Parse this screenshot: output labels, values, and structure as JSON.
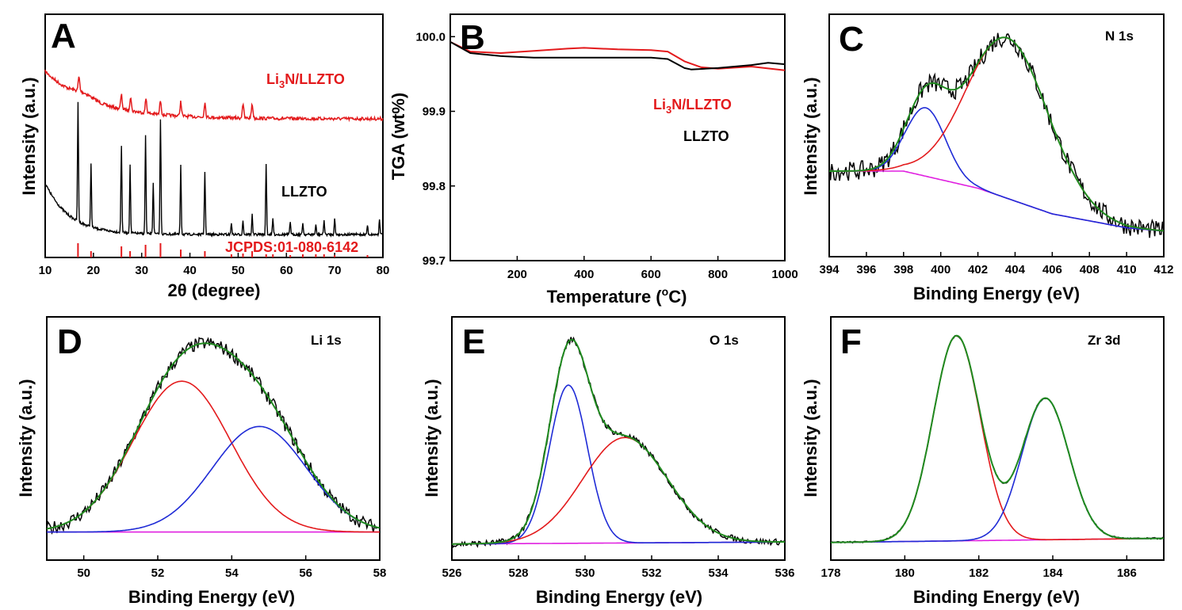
{
  "colors": {
    "black": "#000000",
    "red": "#e31a1c",
    "blue": "#1f2bd6",
    "green": "#1f8a1f",
    "magenta": "#e020e0"
  },
  "chart_data": [
    {
      "panel": "A",
      "type": "line",
      "xlabel": "2θ (degree)",
      "ylabel": "Intensity (a.u.)",
      "xlim": [
        10,
        80
      ],
      "xticks": [
        "10",
        "20",
        "30",
        "40",
        "50",
        "60",
        "70",
        "80"
      ],
      "annotations": [
        {
          "name": "li3n-llzto-label",
          "base": "Li",
          "sub": "3",
          "rest": "N/LLZTO",
          "color": "red"
        },
        {
          "name": "llzto-label",
          "text": "LLZTO",
          "color": "black"
        },
        {
          "name": "jcpds-label",
          "text": "JCPDS:01-080-6142",
          "color": "red"
        }
      ],
      "series": [
        {
          "name": "Li3N/LLZTO",
          "color": "red",
          "peaks": [
            17,
            25.8,
            27.7,
            30.9,
            33.9,
            38.1,
            43.1,
            51,
            52.9
          ]
        },
        {
          "name": "LLZTO",
          "color": "black",
          "peaks": [
            16.8,
            19.5,
            25.8,
            27.6,
            30.8,
            32.4,
            33.9,
            38.1,
            43.1,
            48.6,
            51,
            52.9,
            55.8,
            57.2,
            60.8,
            63.4,
            66.1,
            67.8,
            70,
            76.8,
            79.3
          ]
        },
        {
          "name": "JCPDS reference",
          "color": "red",
          "sticks": [
            16.8,
            19.5,
            25.8,
            27.6,
            30.8,
            33.9,
            38.1,
            43.1,
            48.6,
            51,
            52.9,
            55.8,
            57.2,
            60.8,
            63.4,
            66.1,
            67.8,
            70,
            76.8
          ]
        }
      ]
    },
    {
      "panel": "B",
      "type": "line",
      "xlabel_main": "Temperature (",
      "xlabel_sup": "o",
      "xlabel_end": "C)",
      "ylabel": "TGA (wt%)",
      "xlim": [
        0,
        1000
      ],
      "ylim": [
        99.7,
        100.03
      ],
      "xticks": [
        "200",
        "400",
        "600",
        "800",
        "1000"
      ],
      "yticks": [
        "99.7",
        "99.8",
        "99.9",
        "100.0"
      ],
      "annotations": [
        {
          "name": "li3n-llzto-label",
          "base": "Li",
          "sub": "3",
          "rest": "N/LLZTO",
          "color": "red"
        },
        {
          "name": "llzto-label",
          "text": "LLZTO",
          "color": "black"
        }
      ],
      "series": [
        {
          "name": "Li3N/LLZTO",
          "color": "red",
          "x": [
            0,
            60,
            150,
            250,
            350,
            400,
            500,
            600,
            650,
            700,
            750,
            800,
            900,
            1000
          ],
          "y": [
            99.993,
            99.98,
            99.978,
            99.981,
            99.984,
            99.985,
            99.983,
            99.982,
            99.98,
            99.967,
            99.959,
            99.957,
            99.96,
            99.955
          ]
        },
        {
          "name": "LLZTO",
          "color": "black",
          "x": [
            0,
            60,
            150,
            250,
            350,
            500,
            600,
            650,
            700,
            720,
            800,
            900,
            950,
            1000
          ],
          "y": [
            99.993,
            99.978,
            99.974,
            99.972,
            99.972,
            99.972,
            99.972,
            99.97,
            99.958,
            99.956,
            99.958,
            99.962,
            99.965,
            99.963
          ]
        }
      ]
    },
    {
      "panel": "C",
      "type": "line",
      "corner": "N 1s",
      "xlabel": "Binding Energy (eV)",
      "ylabel": "Intensity (a.u.)",
      "xlim": [
        394,
        412
      ],
      "xticks": [
        "394",
        "396",
        "398",
        "400",
        "402",
        "404",
        "406",
        "408",
        "410",
        "412"
      ],
      "background": [
        [
          394,
          0.3
        ],
        [
          398,
          0.3
        ],
        [
          402,
          0.22
        ],
        [
          406,
          0.1
        ],
        [
          410,
          0.035
        ],
        [
          412,
          0.02
        ]
      ],
      "components": [
        {
          "name": "peak-1",
          "color": "blue",
          "center": 399.2,
          "height": 0.32,
          "width": 2.5
        },
        {
          "name": "peak-2",
          "color": "red",
          "center": 403.6,
          "height": 0.75,
          "width": 5.2
        }
      ],
      "raw_noise": 0.045,
      "raw_color": "black",
      "envelope_color": "green"
    },
    {
      "panel": "D",
      "type": "line",
      "corner": "Li 1s",
      "xlabel": "Binding Energy (eV)",
      "ylabel": "Intensity (a.u.)",
      "xlim": [
        49,
        58
      ],
      "xticks": [
        "50",
        "52",
        "54",
        "56",
        "58"
      ],
      "background": [
        [
          49,
          0.01
        ],
        [
          58,
          0.01
        ]
      ],
      "components": [
        {
          "name": "peak-1",
          "color": "red",
          "center": 52.65,
          "height": 0.8,
          "width": 3.1
        },
        {
          "name": "peak-2",
          "color": "blue",
          "center": 54.75,
          "height": 0.56,
          "width": 3.0
        }
      ],
      "raw_noise": 0.035,
      "raw_color": "black",
      "envelope_color": "green"
    },
    {
      "panel": "E",
      "type": "line",
      "corner": "O 1s",
      "xlabel": "Binding Energy (eV)",
      "ylabel": "Intensity (a.u.)",
      "xlim": [
        526,
        536
      ],
      "xticks": [
        "526",
        "528",
        "530",
        "532",
        "534",
        "536"
      ],
      "background": [
        [
          526,
          0.005
        ],
        [
          536,
          0.015
        ]
      ],
      "components": [
        {
          "name": "peak-1",
          "color": "blue",
          "center": 529.5,
          "height": 0.78,
          "width": 1.35
        },
        {
          "name": "peak-2",
          "color": "red",
          "center": 531.2,
          "height": 0.52,
          "width": 3.0
        }
      ],
      "raw_noise": 0.015,
      "raw_color": "black",
      "envelope_color": "green"
    },
    {
      "panel": "F",
      "type": "line",
      "corner": "Zr 3d",
      "xlabel": "Binding Energy (eV)",
      "ylabel": "Intensity (a.u.)",
      "xlim": [
        178,
        187
      ],
      "xticks": [
        "178",
        "180",
        "182",
        "184",
        "186"
      ],
      "background": [
        [
          178,
          0.005
        ],
        [
          187,
          0.025
        ]
      ],
      "components": [
        {
          "name": "peak-1",
          "color": "red",
          "center": 181.4,
          "height": 1.0,
          "width": 1.5
        },
        {
          "name": "peak-2",
          "color": "blue",
          "center": 183.8,
          "height": 0.69,
          "width": 1.5
        }
      ],
      "raw_noise": 0.004,
      "raw_color": "black",
      "envelope_color": "green"
    }
  ]
}
